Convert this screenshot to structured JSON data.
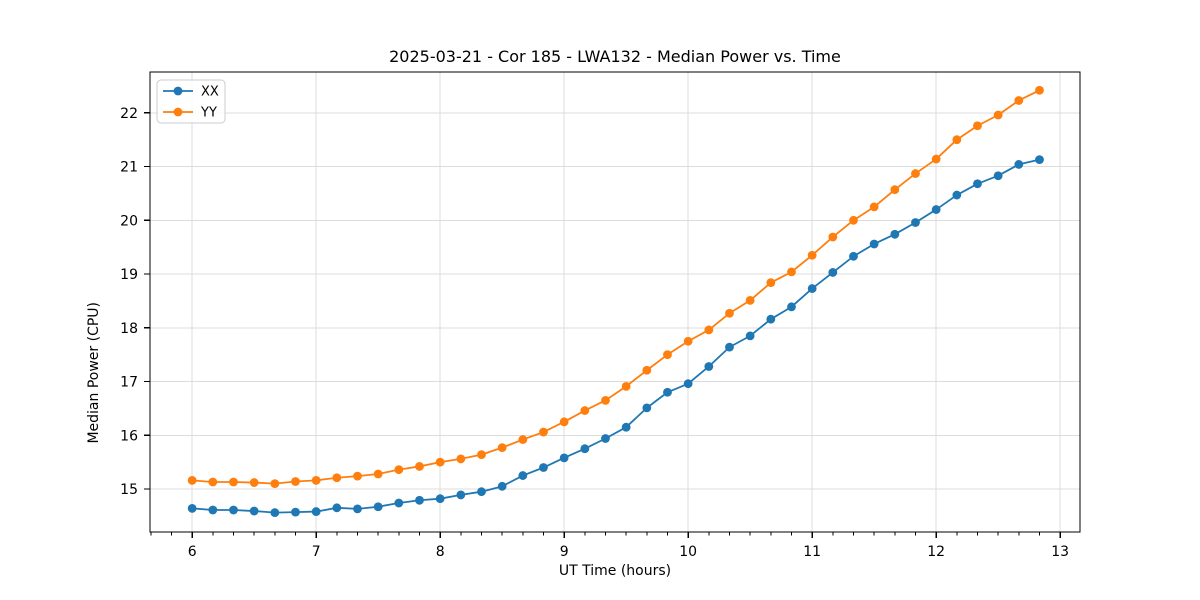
{
  "chart_data": {
    "type": "line",
    "title": "2025-03-21 - Cor 185 - LWA132 - Median Power vs. Time",
    "xlabel": "UT Time (hours)",
    "ylabel": "Median Power (CPU)",
    "x": [
      6.0,
      6.1667,
      6.3333,
      6.5,
      6.6667,
      6.8333,
      7.0,
      7.1667,
      7.3333,
      7.5,
      7.6667,
      7.8333,
      8.0,
      8.1667,
      8.3333,
      8.5,
      8.6667,
      8.8333,
      9.0,
      9.1667,
      9.3333,
      9.5,
      9.6667,
      9.8333,
      10.0,
      10.1667,
      10.3333,
      10.5,
      10.6667,
      10.8333,
      11.0,
      11.1667,
      11.3333,
      11.5,
      11.6667,
      11.8333,
      12.0,
      12.1667,
      12.3333,
      12.5,
      12.6667,
      12.8333
    ],
    "series": [
      {
        "name": "XX",
        "color": "#1f77b4",
        "marker": "circle",
        "values": [
          14.64,
          14.61,
          14.61,
          14.59,
          14.56,
          14.57,
          14.58,
          14.65,
          14.63,
          14.67,
          14.74,
          14.79,
          14.82,
          14.89,
          14.95,
          15.05,
          15.25,
          15.4,
          15.58,
          15.75,
          15.94,
          16.15,
          16.51,
          16.8,
          16.96,
          17.28,
          17.64,
          17.85,
          18.16,
          18.39,
          18.73,
          19.03,
          19.33,
          19.56,
          19.74,
          19.96,
          20.2,
          20.47,
          20.68,
          20.83,
          21.04,
          21.13
        ]
      },
      {
        "name": "YY",
        "color": "#ff7f0e",
        "marker": "circle",
        "values": [
          15.16,
          15.13,
          15.13,
          15.12,
          15.1,
          15.14,
          15.16,
          15.21,
          15.24,
          15.28,
          15.36,
          15.42,
          15.5,
          15.56,
          15.64,
          15.77,
          15.92,
          16.06,
          16.25,
          16.46,
          16.65,
          16.91,
          17.21,
          17.5,
          17.75,
          17.96,
          18.27,
          18.51,
          18.84,
          19.04,
          19.35,
          19.69,
          20.0,
          20.25,
          20.57,
          20.87,
          21.14,
          21.5,
          21.76,
          21.96,
          22.23,
          22.42
        ]
      }
    ],
    "xlim": [
      5.66,
      13.16
    ],
    "ylim": [
      14.2,
      22.76
    ],
    "x_ticks": [
      6,
      7,
      8,
      9,
      10,
      11,
      12,
      13
    ],
    "y_ticks": [
      15,
      16,
      17,
      18,
      19,
      20,
      21,
      22
    ],
    "x_minor_step": 0.166667,
    "grid": true,
    "legend_position": "upper left",
    "colors": {
      "grid": "#dcdcdc",
      "spine": "#000000",
      "tick_label": "#000000",
      "background": "#ffffff",
      "legend_border": "#cccccc"
    }
  }
}
